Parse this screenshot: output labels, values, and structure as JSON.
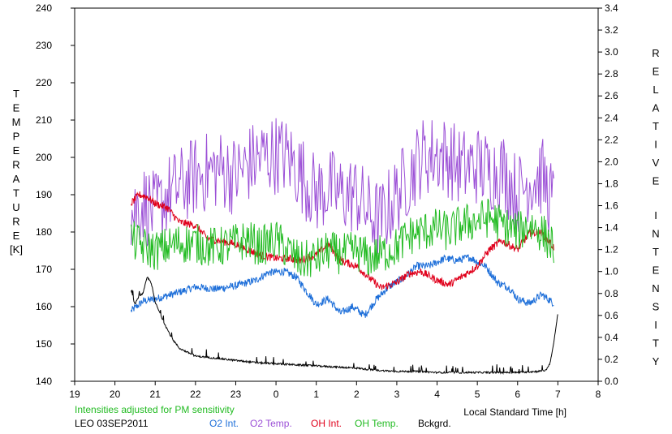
{
  "chart_data": {
    "type": "line",
    "xlabel": "Local Standard Time [h]",
    "ylabel_left": "TEMPERATURE",
    "ylabel_left_unit": "[K]",
    "ylabel_right": "RELATIVE INTENSITY",
    "x_ticks": [
      "19",
      "20",
      "21",
      "22",
      "23",
      "0",
      "1",
      "2",
      "3",
      "4",
      "5",
      "6",
      "7",
      "8"
    ],
    "y_left_ticks": [
      "140",
      "150",
      "160",
      "170",
      "180",
      "190",
      "200",
      "210",
      "220",
      "230",
      "240"
    ],
    "y_right_ticks": [
      "0.0",
      "0.2",
      "0.4",
      "0.6",
      "0.8",
      "1.0",
      "1.2",
      "1.4",
      "1.6",
      "1.8",
      "2.0",
      "2.2",
      "2.4",
      "2.6",
      "2.8",
      "3.0",
      "3.2",
      "3.4"
    ],
    "x_range": [
      19,
      32
    ],
    "y_left_range": [
      140,
      240
    ],
    "y_right_range": [
      0.0,
      3.4
    ],
    "grid": false,
    "note": "Intensities adjusted for PM sensitivity",
    "station": "LEO 03SEP2011",
    "series": [
      {
        "name": "O2 Int.",
        "axis": "right",
        "color": "#1e6fd9",
        "x": [
          20.4,
          20.7,
          21.0,
          21.5,
          22.0,
          22.5,
          23.0,
          23.5,
          23.8,
          24.2,
          24.5,
          24.8,
          25.0,
          25.3,
          25.6,
          25.9,
          26.2,
          26.5,
          26.8,
          27.2,
          27.5,
          27.8,
          28.2,
          28.5,
          28.8,
          29.2,
          29.5,
          29.8,
          30.0,
          30.3,
          30.6,
          30.9
        ],
        "y": [
          0.64,
          0.73,
          0.75,
          0.8,
          0.86,
          0.84,
          0.87,
          0.92,
          0.99,
          1.0,
          0.95,
          0.8,
          0.7,
          0.75,
          0.62,
          0.68,
          0.6,
          0.75,
          0.86,
          0.95,
          1.05,
          1.05,
          1.12,
          1.1,
          1.13,
          1.05,
          0.9,
          0.85,
          0.75,
          0.71,
          0.79,
          0.71
        ]
      },
      {
        "name": "O2 Temp.",
        "axis": "left",
        "color": "#9b4fd6",
        "x": [
          20.4,
          20.7,
          21.0,
          21.3,
          21.6,
          22.0,
          22.3,
          22.6,
          23.0,
          23.3,
          23.6,
          24.0,
          24.3,
          24.6,
          25.0,
          25.3,
          25.6,
          26.0,
          26.3,
          26.6,
          27.0,
          27.3,
          27.6,
          28.0,
          28.3,
          28.6,
          29.0,
          29.3,
          29.6,
          30.0,
          30.3,
          30.6,
          30.9
        ],
        "y": [
          185,
          188,
          185,
          190,
          192,
          195,
          196,
          197,
          195,
          198,
          200,
          201,
          200,
          196,
          190,
          192,
          190,
          190,
          185,
          183,
          190,
          195,
          200,
          201,
          200,
          197,
          198,
          196,
          197,
          190,
          194,
          195,
          187
        ]
      },
      {
        "name": "OH Int.",
        "axis": "right",
        "color": "#e0001b",
        "x": [
          20.4,
          20.6,
          20.8,
          21.0,
          21.3,
          21.6,
          22.0,
          22.3,
          22.6,
          23.0,
          23.3,
          23.6,
          24.0,
          24.3,
          24.6,
          25.0,
          25.3,
          25.6,
          26.0,
          26.3,
          26.6,
          27.0,
          27.3,
          27.6,
          28.0,
          28.3,
          28.6,
          29.0,
          29.3,
          29.6,
          30.0,
          30.3,
          30.6,
          30.9
        ],
        "y": [
          1.62,
          1.7,
          1.68,
          1.62,
          1.58,
          1.45,
          1.42,
          1.3,
          1.28,
          1.25,
          1.2,
          1.15,
          1.12,
          1.12,
          1.1,
          1.15,
          1.25,
          1.1,
          1.05,
          0.95,
          0.85,
          0.9,
          0.98,
          1.0,
          0.92,
          0.88,
          0.95,
          1.05,
          1.2,
          1.28,
          1.2,
          1.35,
          1.35,
          1.22
        ]
      },
      {
        "name": "OH Temp.",
        "axis": "left",
        "color": "#22bb22",
        "x": [
          20.4,
          20.7,
          21.0,
          21.3,
          21.6,
          22.0,
          22.3,
          22.6,
          23.0,
          23.3,
          23.6,
          24.0,
          24.3,
          24.6,
          25.0,
          25.3,
          25.6,
          26.0,
          26.3,
          26.6,
          27.0,
          27.3,
          27.6,
          28.0,
          28.3,
          28.6,
          29.0,
          29.3,
          29.6,
          30.0,
          30.3,
          30.6,
          30.9
        ],
        "y": [
          178,
          176,
          175,
          176,
          177,
          177,
          176,
          176,
          177,
          178,
          176,
          178,
          175,
          172,
          173,
          175,
          174,
          175,
          173,
          174,
          176,
          179,
          180,
          181,
          180,
          182,
          183,
          184,
          182,
          180,
          182,
          180,
          176
        ]
      },
      {
        "name": "Bckgrd.",
        "axis": "right",
        "color": "#000000",
        "x": [
          20.4,
          20.5,
          20.6,
          20.7,
          20.8,
          20.9,
          21.0,
          21.2,
          21.4,
          21.6,
          22.0,
          22.5,
          23.0,
          23.5,
          24.0,
          24.5,
          25.0,
          25.5,
          26.0,
          26.5,
          27.0,
          27.5,
          28.0,
          28.5,
          29.0,
          29.5,
          30.0,
          30.5,
          30.7,
          30.8,
          30.9,
          31.0
        ],
        "y": [
          0.82,
          0.7,
          0.78,
          0.8,
          0.95,
          0.9,
          0.72,
          0.55,
          0.4,
          0.3,
          0.23,
          0.21,
          0.19,
          0.17,
          0.16,
          0.15,
          0.14,
          0.13,
          0.12,
          0.1,
          0.09,
          0.09,
          0.08,
          0.08,
          0.08,
          0.08,
          0.08,
          0.09,
          0.1,
          0.16,
          0.35,
          0.62
        ]
      }
    ]
  }
}
